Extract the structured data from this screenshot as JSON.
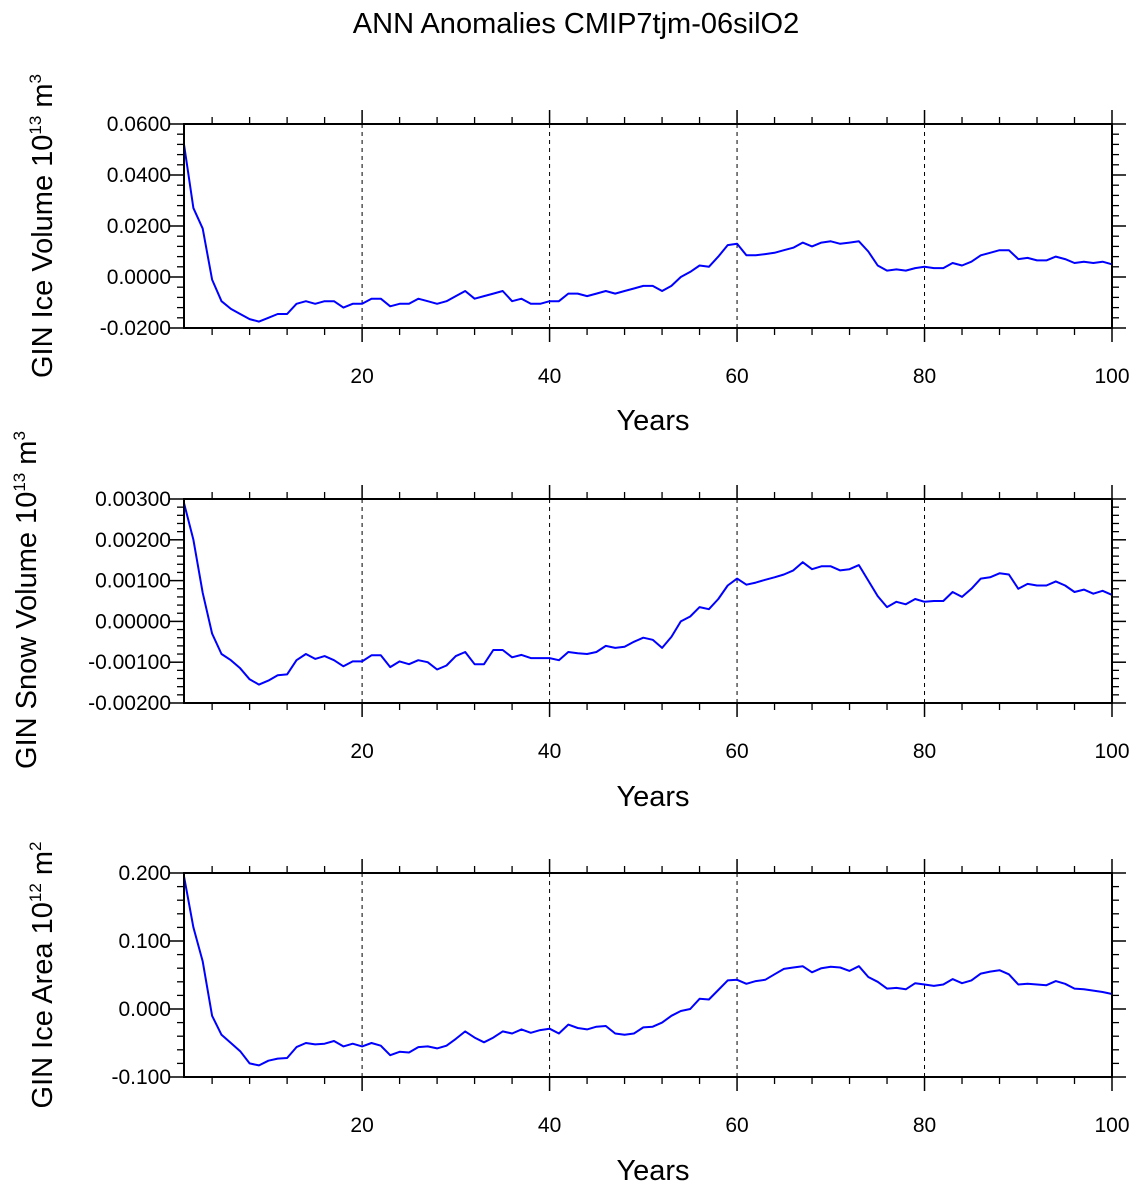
{
  "title": "ANN Anomalies CMIP7tjm-06silO2",
  "chart_data": [
    {
      "type": "line",
      "ylabel_prefix": "GIN Ice Volume 10",
      "ylabel_exp": "13",
      "ylabel_unit": " m",
      "ylabel_unit_exp": "3",
      "xlabel": "Years",
      "xlim": [
        1,
        100
      ],
      "ylim": [
        -0.02,
        0.06
      ],
      "xticks": [
        20,
        40,
        60,
        80,
        100
      ],
      "xtick_labels": [
        "20",
        "40",
        "60",
        "80",
        "100"
      ],
      "yticks": [
        -0.02,
        0,
        0.02,
        0.04,
        0.06
      ],
      "ytick_labels": [
        "-0.0200",
        "0.0000",
        "0.0200",
        "0.0400",
        "0.0600"
      ],
      "grid": "dashed vertical lines at x ticks",
      "line_color": "#0000ff",
      "x": [
        1,
        2,
        3,
        4,
        5,
        6,
        7,
        8,
        9,
        10,
        11,
        12,
        13,
        14,
        15,
        16,
        17,
        18,
        19,
        20,
        21,
        22,
        23,
        24,
        25,
        26,
        27,
        28,
        29,
        30,
        31,
        32,
        33,
        34,
        35,
        36,
        37,
        38,
        39,
        40,
        41,
        42,
        43,
        44,
        45,
        46,
        47,
        48,
        49,
        50,
        51,
        52,
        53,
        54,
        55,
        56,
        57,
        58,
        59,
        60,
        61,
        62,
        63,
        64,
        65,
        66,
        67,
        68,
        69,
        70,
        71,
        72,
        73,
        74,
        75,
        76,
        77,
        78,
        79,
        80,
        81,
        82,
        83,
        84,
        85,
        86,
        87,
        88,
        89,
        90,
        91,
        92,
        93,
        94,
        95,
        96,
        97,
        98,
        99,
        100
      ],
      "y": [
        0.052,
        0.027,
        0.019,
        -0.001,
        -0.0095,
        -0.0125,
        -0.0145,
        -0.0165,
        -0.0175,
        -0.016,
        -0.0145,
        -0.0145,
        -0.0105,
        -0.0095,
        -0.0105,
        -0.0095,
        -0.0095,
        -0.012,
        -0.0105,
        -0.0105,
        -0.0085,
        -0.0085,
        -0.0115,
        -0.0105,
        -0.0105,
        -0.0085,
        -0.0095,
        -0.0105,
        -0.0095,
        -0.0075,
        -0.0055,
        -0.0085,
        -0.0075,
        -0.0065,
        -0.0055,
        -0.0095,
        -0.0085,
        -0.0105,
        -0.0105,
        -0.0095,
        -0.0095,
        -0.0065,
        -0.0065,
        -0.0075,
        -0.0065,
        -0.0055,
        -0.0065,
        -0.0055,
        -0.0045,
        -0.0035,
        -0.0035,
        -0.0055,
        -0.0035,
        0.0,
        0.002,
        0.0045,
        0.004,
        0.008,
        0.0125,
        0.013,
        0.0085,
        0.0085,
        0.009,
        0.0095,
        0.0105,
        0.0115,
        0.0135,
        0.012,
        0.0135,
        0.014,
        0.013,
        0.0135,
        0.014,
        0.01,
        0.0045,
        0.0025,
        0.003,
        0.0025,
        0.0035,
        0.004,
        0.0035,
        0.0035,
        0.0055,
        0.0045,
        0.006,
        0.0085,
        0.0095,
        0.0105,
        0.0105,
        0.007,
        0.0075,
        0.0065,
        0.0065,
        0.008,
        0.007,
        0.0055,
        0.006,
        0.0055,
        0.006,
        0.005
      ]
    },
    {
      "type": "line",
      "ylabel_prefix": "GIN Snow Volume 10",
      "ylabel_exp": "13",
      "ylabel_unit": " m",
      "ylabel_unit_exp": "3",
      "xlabel": "Years",
      "xlim": [
        1,
        100
      ],
      "ylim": [
        -0.002,
        0.003
      ],
      "xticks": [
        20,
        40,
        60,
        80,
        100
      ],
      "xtick_labels": [
        "20",
        "40",
        "60",
        "80",
        "100"
      ],
      "yticks": [
        -0.002,
        -0.001,
        0,
        0.001,
        0.002,
        0.003
      ],
      "ytick_labels": [
        "-0.00200",
        "-0.00100",
        "0.00000",
        "0.00100",
        "0.00200",
        "0.00300"
      ],
      "grid": "dashed vertical lines at x ticks",
      "line_color": "#0000ff",
      "x": [
        1,
        2,
        3,
        4,
        5,
        6,
        7,
        8,
        9,
        10,
        11,
        12,
        13,
        14,
        15,
        16,
        17,
        18,
        19,
        20,
        21,
        22,
        23,
        24,
        25,
        26,
        27,
        28,
        29,
        30,
        31,
        32,
        33,
        34,
        35,
        36,
        37,
        38,
        39,
        40,
        41,
        42,
        43,
        44,
        45,
        46,
        47,
        48,
        49,
        50,
        51,
        52,
        53,
        54,
        55,
        56,
        57,
        58,
        59,
        60,
        61,
        62,
        63,
        64,
        65,
        66,
        67,
        68,
        69,
        70,
        71,
        72,
        73,
        74,
        75,
        76,
        77,
        78,
        79,
        80,
        81,
        82,
        83,
        84,
        85,
        86,
        87,
        88,
        89,
        90,
        91,
        92,
        93,
        94,
        95,
        96,
        97,
        98,
        99,
        100
      ],
      "y": [
        0.0029,
        0.002,
        0.0007,
        -0.0003,
        -0.0008,
        -0.00095,
        -0.00115,
        -0.00142,
        -0.00155,
        -0.00145,
        -0.00132,
        -0.0013,
        -0.00095,
        -0.0008,
        -0.00092,
        -0.00085,
        -0.00095,
        -0.0011,
        -0.00098,
        -0.00098,
        -0.00083,
        -0.00083,
        -0.00112,
        -0.00098,
        -0.00105,
        -0.00095,
        -0.001,
        -0.00118,
        -0.00108,
        -0.00085,
        -0.00075,
        -0.00105,
        -0.00105,
        -0.0007,
        -0.0007,
        -0.00088,
        -0.00082,
        -0.0009,
        -0.0009,
        -0.0009,
        -0.00095,
        -0.00075,
        -0.00078,
        -0.0008,
        -0.00075,
        -0.0006,
        -0.00065,
        -0.00062,
        -0.0005,
        -0.0004,
        -0.00045,
        -0.00065,
        -0.00038,
        0.0,
        0.00012,
        0.00035,
        0.0003,
        0.00055,
        0.00088,
        0.00105,
        0.0009,
        0.00095,
        0.00102,
        0.00108,
        0.00115,
        0.00125,
        0.00145,
        0.00128,
        0.00135,
        0.00135,
        0.00125,
        0.00128,
        0.00138,
        0.001,
        0.00062,
        0.00035,
        0.00048,
        0.00042,
        0.00055,
        0.00048,
        0.0005,
        0.0005,
        0.00072,
        0.0006,
        0.0008,
        0.00105,
        0.00108,
        0.00118,
        0.00115,
        0.0008,
        0.00092,
        0.00088,
        0.00088,
        0.00098,
        0.00088,
        0.00072,
        0.00078,
        0.00068,
        0.00075,
        0.00065
      ]
    },
    {
      "type": "line",
      "ylabel_prefix": "GIN Ice Area 10",
      "ylabel_exp": "12",
      "ylabel_unit": " m",
      "ylabel_unit_exp": "2",
      "xlabel": "Years",
      "xlim": [
        1,
        100
      ],
      "ylim": [
        -0.1,
        0.2
      ],
      "xticks": [
        20,
        40,
        60,
        80,
        100
      ],
      "xtick_labels": [
        "20",
        "40",
        "60",
        "80",
        "100"
      ],
      "yticks": [
        -0.1,
        0,
        0.1,
        0.2
      ],
      "ytick_labels": [
        "-0.100",
        "0.000",
        "0.100",
        "0.200"
      ],
      "grid": "dashed vertical lines at x ticks",
      "line_color": "#0000ff",
      "x": [
        1,
        2,
        3,
        4,
        5,
        6,
        7,
        8,
        9,
        10,
        11,
        12,
        13,
        14,
        15,
        16,
        17,
        18,
        19,
        20,
        21,
        22,
        23,
        24,
        25,
        26,
        27,
        28,
        29,
        30,
        31,
        32,
        33,
        34,
        35,
        36,
        37,
        38,
        39,
        40,
        41,
        42,
        43,
        44,
        45,
        46,
        47,
        48,
        49,
        50,
        51,
        52,
        53,
        54,
        55,
        56,
        57,
        58,
        59,
        60,
        61,
        62,
        63,
        64,
        65,
        66,
        67,
        68,
        69,
        70,
        71,
        72,
        73,
        74,
        75,
        76,
        77,
        78,
        79,
        80,
        81,
        82,
        83,
        84,
        85,
        86,
        87,
        88,
        89,
        90,
        91,
        92,
        93,
        94,
        95,
        96,
        97,
        98,
        99,
        100
      ],
      "y": [
        0.195,
        0.12,
        0.07,
        -0.01,
        -0.038,
        -0.05,
        -0.062,
        -0.08,
        -0.083,
        -0.076,
        -0.073,
        -0.072,
        -0.056,
        -0.05,
        -0.052,
        -0.051,
        -0.047,
        -0.055,
        -0.051,
        -0.055,
        -0.05,
        -0.054,
        -0.068,
        -0.063,
        -0.064,
        -0.056,
        -0.055,
        -0.058,
        -0.054,
        -0.044,
        -0.033,
        -0.042,
        -0.049,
        -0.042,
        -0.033,
        -0.036,
        -0.03,
        -0.035,
        -0.031,
        -0.029,
        -0.036,
        -0.023,
        -0.028,
        -0.03,
        -0.026,
        -0.025,
        -0.036,
        -0.038,
        -0.036,
        -0.027,
        -0.026,
        -0.02,
        -0.01,
        -0.003,
        0.0,
        0.015,
        0.014,
        0.028,
        0.042,
        0.043,
        0.037,
        0.041,
        0.043,
        0.051,
        0.059,
        0.061,
        0.063,
        0.054,
        0.06,
        0.062,
        0.061,
        0.056,
        0.063,
        0.047,
        0.04,
        0.03,
        0.031,
        0.029,
        0.038,
        0.036,
        0.034,
        0.036,
        0.044,
        0.038,
        0.042,
        0.052,
        0.055,
        0.057,
        0.051,
        0.036,
        0.037,
        0.036,
        0.035,
        0.041,
        0.037,
        0.03,
        0.029,
        0.027,
        0.025,
        0.022
      ]
    }
  ]
}
